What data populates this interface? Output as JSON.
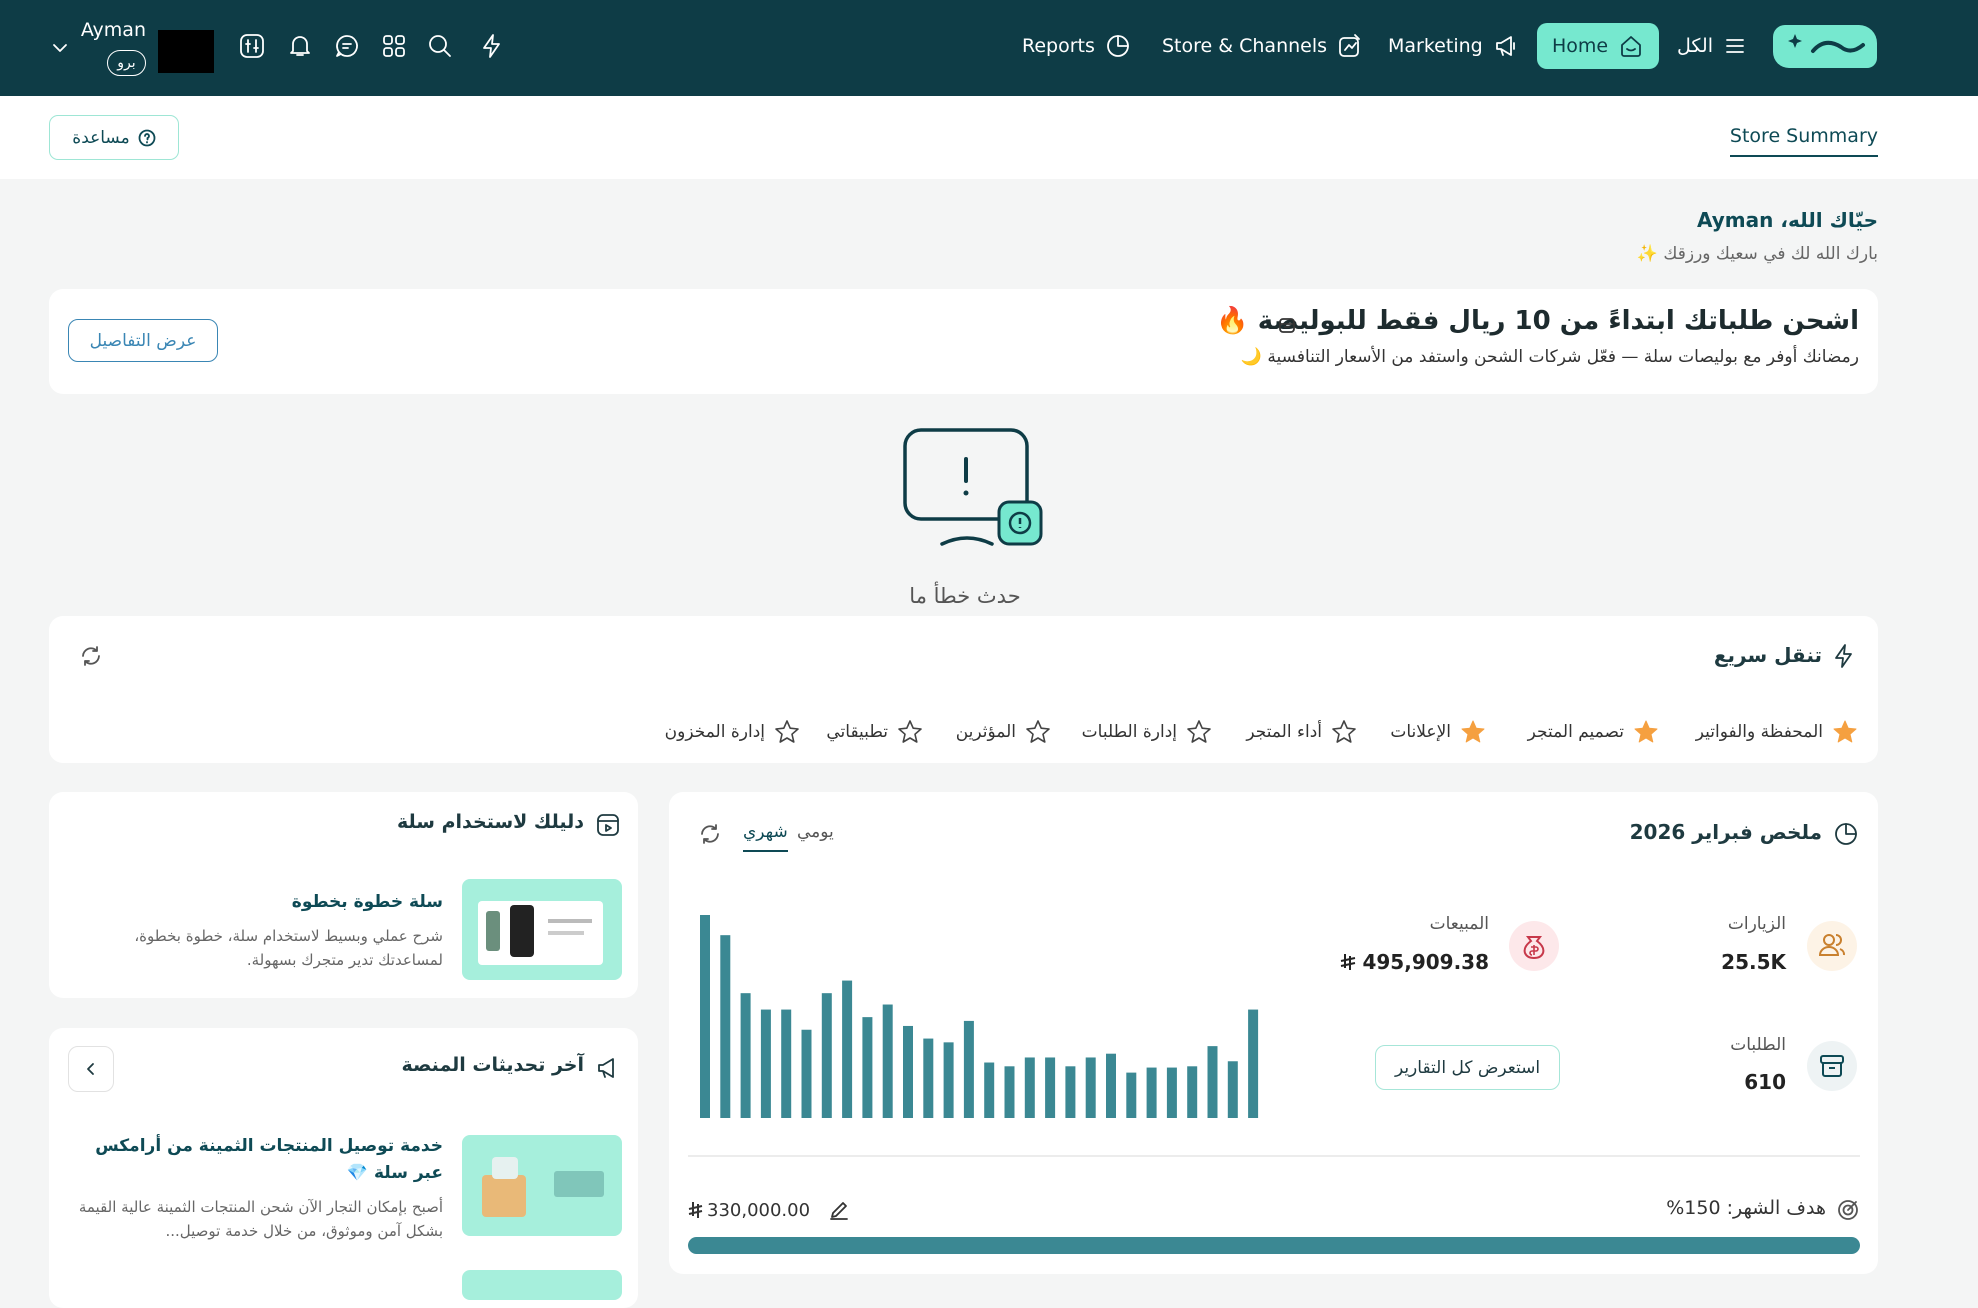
{
  "header": {
    "user_name": "Ayman",
    "plan": "برو",
    "nav": [
      "الكل",
      "Home",
      "Marketing",
      "Store & Channels",
      "Reports"
    ]
  },
  "subheader": {
    "tab": "Store Summary",
    "help": "مساعدة"
  },
  "greeting": {
    "title_prefix": "حيّاك الله،",
    "name": "Ayman",
    "subtitle": "بارك الله لك في سعيك ورزقك ✨"
  },
  "banner": {
    "title": "اشحن طلباتك ابتداءً من 10 ريال فقط للبوليصة 🔥",
    "subtitle": "رمضانك أوفر مع بوليصات سلة — فعّل شركات الشحن واستفد من الأسعار التنافسية 🌙",
    "button": "عرض التفاصيل"
  },
  "error": {
    "message": "حدث خطأ ما"
  },
  "quick_nav": {
    "title": "تنقل سريع",
    "items": [
      {
        "label": "المحفظة والفواتير",
        "starred": true
      },
      {
        "label": "تصميم المتجر",
        "starred": true
      },
      {
        "label": "الإعلانات",
        "starred": true
      },
      {
        "label": "أداء المتجر",
        "starred": false
      },
      {
        "label": "إدارة الطلبات",
        "starred": false
      },
      {
        "label": "المؤثرين",
        "starred": false
      },
      {
        "label": "تطبيقاتي",
        "starred": false
      },
      {
        "label": "إدارة المخزون",
        "starred": false
      }
    ]
  },
  "guide": {
    "title": "دليلك لاستخدام سلة",
    "item_title": "سلة خطوة بخطوة",
    "item_description": "شرح عملي وبسيط لاستخدام سلة، خطوة بخطوة، لمساعدتك تدير متجرك بسهولة."
  },
  "updates": {
    "title": "آخر تحديثات المنصة",
    "item_title": "خدمة توصيل المنتجات الثمينة من أرامكس عبر سلة 💎",
    "item_description": "أصبح بإمكان التجار الآن شحن المنتجات الثمينة عالية القيمة بشكل آمن وموثوق، من خلال خدمة توصيل..."
  },
  "summary": {
    "title": "ملخص فبراير 2026",
    "tabs": [
      "يومي",
      "شهري"
    ],
    "active_tab": 1,
    "stats": [
      {
        "label": "الزيارات",
        "value": "25.5K"
      },
      {
        "label": "المبيعات",
        "value": "495,909.38"
      },
      {
        "label": "الطلبات",
        "value": "610"
      }
    ],
    "reports_button": "استعرض كل التقارير",
    "daily_bars": [
      161,
      145,
      99,
      86,
      86,
      70,
      99,
      109,
      80,
      90,
      73,
      63,
      60,
      77,
      44,
      41,
      48,
      48,
      41,
      48,
      51,
      36,
      40,
      40,
      41,
      57,
      45,
      86
    ],
    "goal_label": "هدف الشهر: 150%",
    "goal_target": "330,000.00"
  }
}
